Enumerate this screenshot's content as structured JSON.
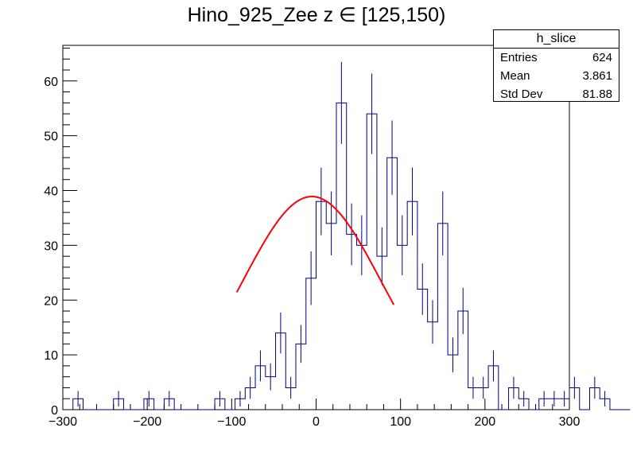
{
  "chart_data": {
    "type": "histogram",
    "title": "Hino_925_Zee z  ∈ [125,150)",
    "xlim": [
      -300,
      300
    ],
    "ylim": [
      0,
      66.5
    ],
    "bin_width": 12,
    "x_ticks": [
      -300,
      -200,
      -100,
      0,
      100,
      200,
      300
    ],
    "y_ticks": [
      0,
      10,
      20,
      30,
      40,
      50,
      60
    ],
    "bin_contents": [
      0,
      2,
      0,
      0,
      0,
      2,
      0,
      0,
      2,
      0,
      2,
      0,
      0,
      0,
      0,
      2,
      0,
      2,
      4,
      8,
      6,
      14,
      4,
      12,
      24,
      38,
      34,
      56,
      32,
      30,
      54,
      28,
      46,
      30,
      38,
      22,
      16,
      34,
      10,
      18,
      4,
      4,
      8,
      0,
      4,
      2,
      0,
      2,
      2,
      2,
      4,
      0,
      4,
      2,
      0,
      0
    ],
    "bin_start": -300,
    "series_color": "#00007f",
    "fit": {
      "function": "gaussian",
      "color": "#ff0000",
      "x_range": [
        -94,
        92
      ],
      "constant": 38.9,
      "mean": -5,
      "sigma": 81.5
    },
    "stats_box": {
      "name": "h_slice",
      "rows": [
        {
          "label": "Entries",
          "value": "624"
        },
        {
          "label": "Mean",
          "value": "3.861"
        },
        {
          "label": "Std Dev",
          "value": "81.88"
        }
      ]
    }
  }
}
